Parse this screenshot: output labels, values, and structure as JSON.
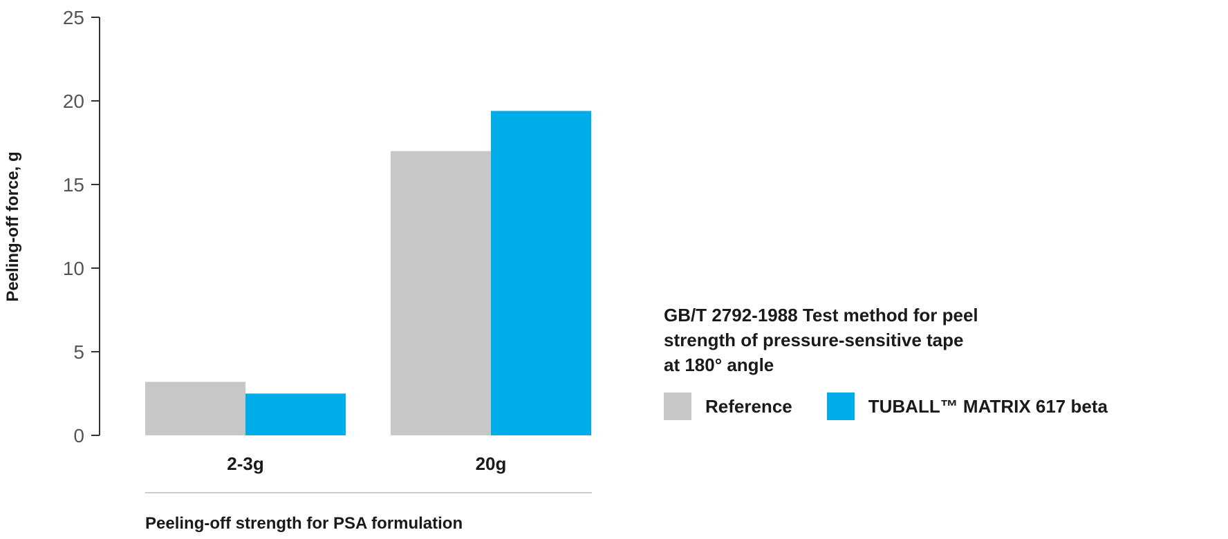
{
  "chart_data": {
    "type": "bar",
    "categories": [
      "2-3g",
      "20g"
    ],
    "series": [
      {
        "name": "Reference",
        "values": [
          3.2,
          17.0
        ],
        "color": "#c6c7c7"
      },
      {
        "name": "TUBALL™ MATRIX 617 beta",
        "values": [
          2.5,
          19.4
        ],
        "color": "#00ade9"
      }
    ],
    "ylabel": "Peeling-off force, g",
    "xlabel": "Peeling-off strength for PSA formulation",
    "ylim": [
      0,
      25
    ],
    "yticks": [
      "0",
      "5",
      "10",
      "15",
      "20",
      "25"
    ],
    "grid": false,
    "legend_position": "right"
  },
  "note_lines": [
    "GB/T 2792-1988 Test method for peel",
    "strength of pressure-sensitive tape",
    "at 180° angle"
  ]
}
